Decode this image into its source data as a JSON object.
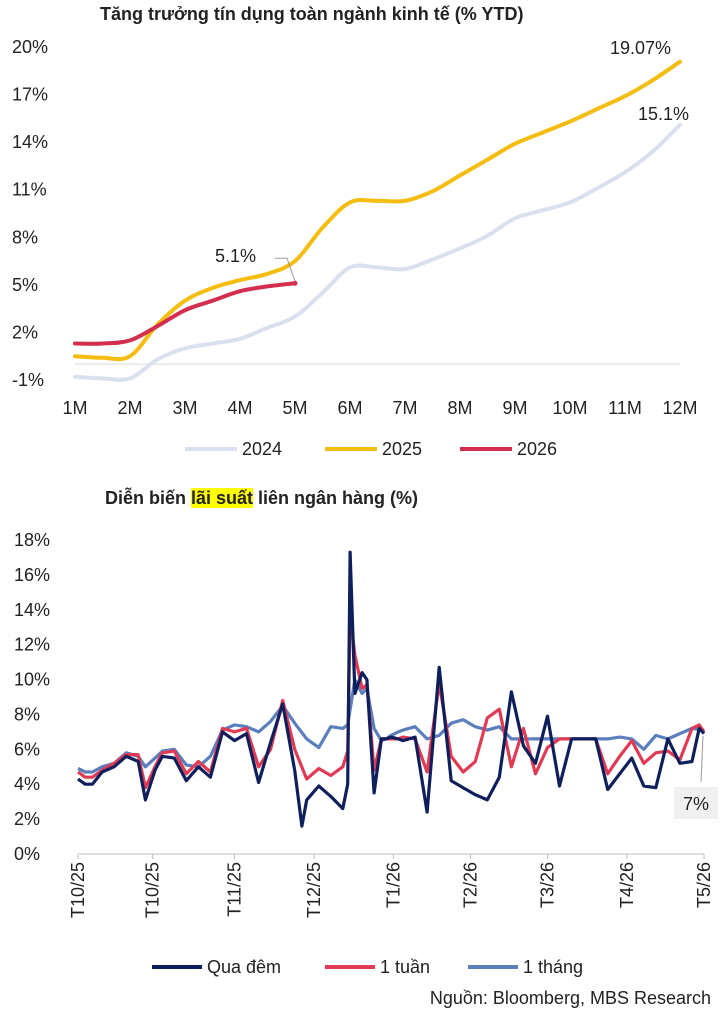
{
  "chart_data": [
    {
      "type": "line",
      "title": "Tăng trưởng tín dụng toàn ngành kinh tế (% YTD)",
      "categories": [
        "1M",
        "2M",
        "3M",
        "4M",
        "5M",
        "6M",
        "7M",
        "8M",
        "9M",
        "10M",
        "11M",
        "12M"
      ],
      "yticks": [
        "20%",
        "17%",
        "14%",
        "11%",
        "8%",
        "5%",
        "2%",
        "-1%"
      ],
      "ylim": [
        -1,
        20
      ],
      "grid": false,
      "legend_position": "bottom",
      "colors": {
        "2024": "#dbe0ef",
        "2025": "#f4bd0f",
        "2026": "#d42e4e"
      },
      "series": [
        {
          "name": "2024",
          "x": [
            1,
            1.5,
            2,
            2.5,
            3,
            3.5,
            4,
            4.5,
            5,
            5.5,
            6,
            6.5,
            7,
            7.5,
            8,
            8.5,
            9,
            9.5,
            10,
            10.5,
            11,
            11.5,
            12
          ],
          "values": [
            -0.8,
            -0.9,
            -0.9,
            0.3,
            1.0,
            1.3,
            1.6,
            2.3,
            3.0,
            4.5,
            6.1,
            6.1,
            6.0,
            6.6,
            7.3,
            8.1,
            9.2,
            9.7,
            10.2,
            11.1,
            12.1,
            13.4,
            15.1
          ]
        },
        {
          "name": "2025",
          "x": [
            1,
            1.5,
            2,
            2.5,
            3,
            3.5,
            4,
            4.5,
            5,
            5.5,
            6,
            6.5,
            7,
            7.5,
            8,
            8.5,
            9,
            9.5,
            10,
            10.5,
            11,
            11.5,
            12
          ],
          "values": [
            0.5,
            0.4,
            0.5,
            2.5,
            4.0,
            4.8,
            5.3,
            5.7,
            6.5,
            8.6,
            10.2,
            10.3,
            10.3,
            10.9,
            11.9,
            12.9,
            13.9,
            14.6,
            15.3,
            16.1,
            16.9,
            17.9,
            19.07
          ]
        },
        {
          "name": "2026",
          "x": [
            1,
            1.5,
            2,
            2.5,
            3,
            3.5,
            4,
            4.5,
            5
          ],
          "values": [
            1.3,
            1.3,
            1.5,
            2.4,
            3.4,
            4.0,
            4.6,
            4.9,
            5.1
          ]
        }
      ],
      "annotations": [
        {
          "series": "2026",
          "x": 5,
          "y": 5.1,
          "text": "5.1%"
        },
        {
          "series": "2025",
          "x": 12,
          "y": 19.07,
          "text": "19.07%"
        },
        {
          "series": "2024",
          "x": 12,
          "y": 15.1,
          "text": "15.1%"
        }
      ]
    },
    {
      "type": "line",
      "title_before": "Diễn biến ",
      "title_highlight": "lãi suất",
      "title_after": " liên ngân hàng (%)",
      "yticks": [
        "18%",
        "16%",
        "14%",
        "12%",
        "10%",
        "8%",
        "6%",
        "4%",
        "2%",
        "0%"
      ],
      "ylim": [
        0,
        18
      ],
      "x_tick_labels": [
        "T10/25",
        "T10/25",
        "T11/25",
        "T12/25",
        "T1/26",
        "T2/26",
        "T3/26",
        "T4/26",
        "T5/26"
      ],
      "grid": false,
      "legend_position": "bottom",
      "colors": {
        "Qua đêm": "#0f1f5c",
        "1 tuần": "#e13a55",
        "1 tháng": "#5b7fbd"
      },
      "series": [
        {
          "name": "1 tháng",
          "x": [
            0,
            3,
            6,
            10,
            15,
            20,
            25,
            28,
            32,
            35,
            40,
            45,
            50,
            55,
            60,
            65,
            70,
            75,
            80,
            85,
            90,
            95,
            100,
            105,
            110,
            112,
            115,
            118,
            120,
            123,
            126,
            128,
            130,
            133,
            135,
            140,
            145,
            150,
            155,
            160,
            165,
            170,
            175,
            180,
            185,
            190,
            195,
            200,
            205,
            210,
            215,
            220,
            225,
            230,
            235,
            240,
            245,
            250,
            255,
            260
          ],
          "values": [
            4.9,
            4.7,
            4.7,
            5.0,
            5.2,
            5.8,
            5.6,
            5.0,
            5.5,
            5.9,
            6.0,
            5.1,
            5.0,
            5.6,
            7.1,
            7.4,
            7.3,
            7.0,
            7.6,
            8.5,
            7.5,
            6.6,
            6.1,
            7.3,
            7.2,
            7.4,
            10.0,
            9.2,
            9.5,
            7.2,
            6.5,
            6.6,
            6.8,
            7.0,
            7.1,
            7.3,
            6.6,
            6.8,
            7.5,
            7.7,
            7.3,
            7.1,
            7.3,
            6.6,
            6.6,
            6.6,
            6.6,
            6.6,
            6.6,
            6.6,
            6.6,
            6.6,
            6.7,
            6.6,
            6.0,
            6.8,
            6.6,
            6.9,
            7.2,
            7.1
          ]
        },
        {
          "name": "1 tuần",
          "x": [
            0,
            3,
            6,
            10,
            15,
            20,
            25,
            28,
            32,
            35,
            40,
            45,
            50,
            55,
            60,
            65,
            70,
            75,
            80,
            85,
            90,
            95,
            100,
            105,
            110,
            112,
            113,
            115,
            118,
            120,
            123,
            126,
            128,
            130,
            133,
            135,
            140,
            145,
            150,
            155,
            160,
            165,
            170,
            175,
            180,
            185,
            190,
            195,
            200,
            205,
            210,
            215,
            220,
            225,
            230,
            235,
            240,
            245,
            250,
            255,
            258,
            260
          ],
          "values": [
            4.7,
            4.4,
            4.4,
            4.8,
            5.2,
            5.7,
            5.7,
            3.8,
            5.0,
            5.8,
            5.9,
            4.6,
            5.3,
            4.7,
            7.2,
            7.0,
            7.2,
            5.0,
            6.0,
            8.8,
            6.0,
            4.3,
            4.9,
            4.5,
            5.0,
            5.9,
            13.7,
            11.4,
            9.5,
            9.7,
            4.8,
            6.6,
            6.6,
            6.6,
            6.6,
            6.7,
            6.6,
            4.7,
            9.8,
            5.6,
            4.7,
            5.3,
            7.8,
            8.3,
            5.0,
            7.2,
            4.6,
            6.1,
            6.6,
            6.6,
            6.6,
            6.6,
            4.6,
            5.6,
            6.5,
            5.2,
            5.8,
            5.9,
            5.4,
            7.2,
            7.4,
            7.0
          ]
        },
        {
          "name": "Qua đêm",
          "x": [
            0,
            3,
            6,
            10,
            15,
            20,
            25,
            28,
            32,
            35,
            40,
            45,
            50,
            55,
            60,
            65,
            70,
            75,
            80,
            85,
            90,
            93,
            95,
            100,
            105,
            110,
            112,
            113,
            115,
            118,
            120,
            123,
            126,
            128,
            130,
            133,
            135,
            140,
            145,
            150,
            155,
            160,
            165,
            170,
            175,
            180,
            185,
            190,
            195,
            200,
            205,
            210,
            215,
            220,
            225,
            230,
            235,
            240,
            245,
            250,
            255,
            258,
            260
          ],
          "values": [
            4.3,
            4.0,
            4.0,
            4.7,
            5.0,
            5.6,
            5.3,
            3.1,
            4.8,
            5.6,
            5.5,
            4.2,
            5.0,
            4.4,
            7.0,
            6.5,
            6.9,
            4.1,
            6.4,
            8.6,
            4.8,
            1.6,
            3.1,
            3.9,
            3.3,
            2.6,
            4.0,
            17.3,
            9.2,
            10.4,
            10.0,
            3.5,
            6.6,
            6.6,
            6.7,
            6.6,
            6.5,
            6.7,
            2.4,
            10.7,
            4.2,
            3.8,
            3.4,
            3.1,
            4.4,
            9.3,
            6.2,
            5.2,
            7.9,
            3.9,
            6.6,
            6.6,
            6.6,
            3.7,
            4.6,
            5.5,
            3.9,
            3.8,
            6.6,
            5.2,
            5.3,
            7.2,
            6.9
          ]
        }
      ],
      "annotations": [
        {
          "series": "1 tuần",
          "x": "end",
          "text": "7%"
        }
      ],
      "source": "Nguồn: Bloomberg, MBS Research"
    }
  ]
}
